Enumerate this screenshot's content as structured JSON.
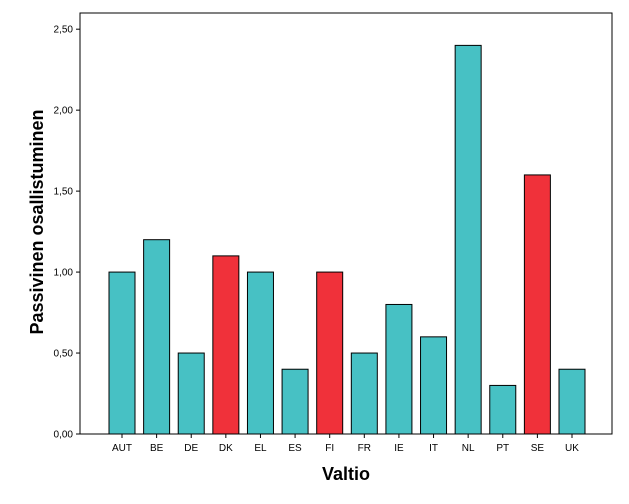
{
  "chart_data": {
    "type": "bar",
    "xlabel": "Valtio",
    "ylabel": "Passivinen osallistuminen",
    "categories": [
      "AUT",
      "BE",
      "DE",
      "DK",
      "EL",
      "ES",
      "FI",
      "FR",
      "IE",
      "IT",
      "NL",
      "PT",
      "SE",
      "UK"
    ],
    "values": [
      1.0,
      1.2,
      0.5,
      1.1,
      1.0,
      0.4,
      1.0,
      0.5,
      0.8,
      0.6,
      2.4,
      0.3,
      1.6,
      0.4
    ],
    "bar_colors": [
      "#47c1c4",
      "#47c1c4",
      "#47c1c4",
      "#f0313a",
      "#47c1c4",
      "#47c1c4",
      "#f0313a",
      "#47c1c4",
      "#47c1c4",
      "#47c1c4",
      "#47c1c4",
      "#47c1c4",
      "#f0313a",
      "#47c1c4"
    ],
    "ylim": [
      0,
      2.6
    ],
    "yticks": [
      0,
      0.5,
      1.0,
      1.5,
      2.0,
      2.5
    ],
    "ytick_labels": [
      "0,00",
      "0,50",
      "1,00",
      "1,50",
      "2,00",
      "2,50"
    ],
    "grid": false,
    "legend": "none",
    "colors": {
      "teal": "#47c1c4",
      "red": "#f0313a",
      "frame": "#000000"
    }
  }
}
